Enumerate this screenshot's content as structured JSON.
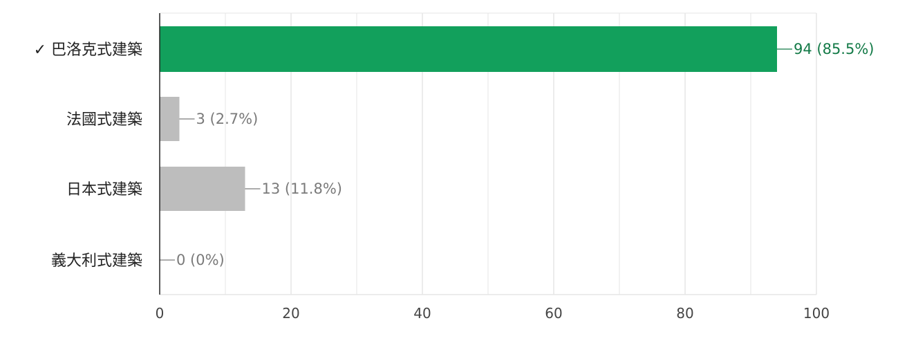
{
  "chart_data": {
    "type": "bar",
    "orientation": "horizontal",
    "categories": [
      "✓ 巴洛克式建築",
      "法國式建築",
      "日本式建築",
      "義大利式建築"
    ],
    "values": [
      94,
      3,
      13,
      0
    ],
    "data_labels": [
      "94 (85.5%)",
      "3 (2.7%)",
      "13 (11.8%)",
      "0 (0%)"
    ],
    "correct_index": 0,
    "xlim": [
      0,
      100
    ],
    "xticks": [
      0,
      20,
      40,
      60,
      80,
      100
    ],
    "grid": true,
    "colors": {
      "correct_bar": "#12a05c",
      "correct_text": "#137a47",
      "other_bar": "#bdbdbd",
      "other_text": "#7a7a7a",
      "grid": "#e6e6e6",
      "axis": "#222222"
    }
  }
}
